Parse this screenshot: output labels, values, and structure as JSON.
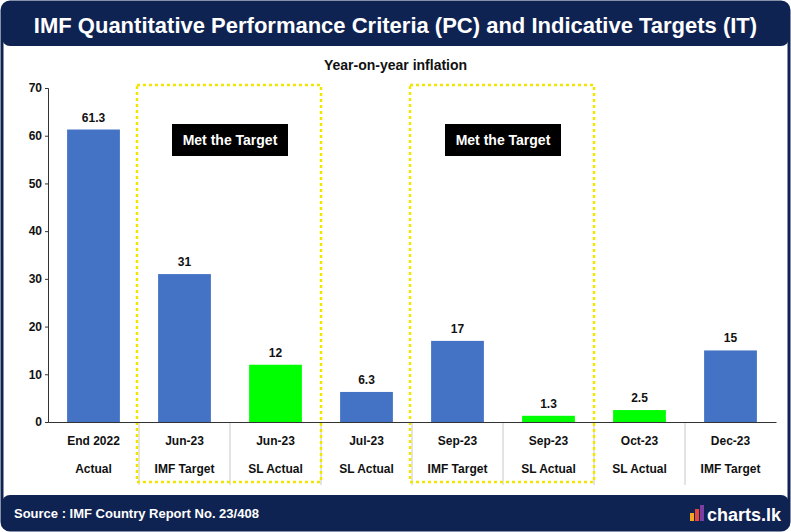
{
  "chart_data": {
    "type": "bar",
    "title": "IMF Quantitative Performance Criteria (PC) and Indicative Targets (IT)",
    "subtitle": "Year-on-year inflation",
    "categories": [
      "End 2022\nActual",
      "Jun-23\nIMF Target",
      "Jun-23\nSL Actual",
      "Jul-23\nSL Actual",
      "Sep-23\nIMF Target",
      "Sep-23\nSL Actual",
      "Oct-23\nSL Actual",
      "Dec-23\nIMF Target"
    ],
    "values": [
      61.3,
      31,
      12,
      6.3,
      17,
      1.3,
      2.5,
      15
    ],
    "colors": [
      "#4472c4",
      "#4472c4",
      "#00ff00",
      "#4472c4",
      "#4472c4",
      "#00ff00",
      "#00ff00",
      "#4472c4"
    ],
    "ylim": [
      0,
      70
    ],
    "yticks": [
      0,
      10,
      20,
      30,
      40,
      50,
      60,
      70
    ],
    "grid": false,
    "data_labels": true,
    "annotations": [
      "Met the Target",
      "Met the Target"
    ],
    "source": "Source : IMF Country Report No. 23/408",
    "brand": "charts.lk"
  }
}
